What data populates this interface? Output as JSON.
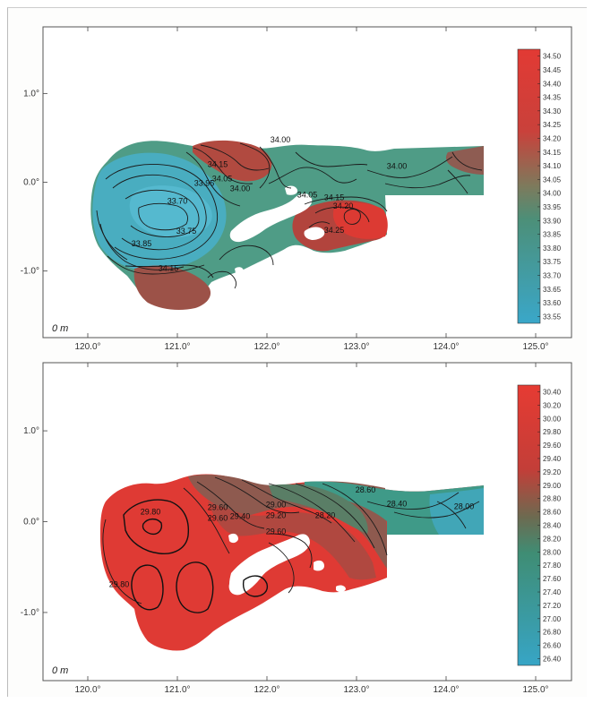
{
  "chart_data": [
    {
      "type": "heatmap",
      "panel": "top",
      "depth_label": "0 m",
      "x_ticks": [
        "120.0°",
        "121.0°",
        "122.0°",
        "123.0°",
        "124.0°",
        "125.0°"
      ],
      "y_ticks": [
        "1.0°",
        "0.0°",
        "-1.0°"
      ],
      "xlim": [
        119.5,
        125.4
      ],
      "ylim": [
        -1.75,
        1.75
      ],
      "colorbar": {
        "position": "right",
        "low_color": "#3fa9c6",
        "high_color": "#dd3b33",
        "labels": [
          "34.50",
          "34.45",
          "34.40",
          "34.35",
          "34.30",
          "34.25",
          "34.20",
          "34.15",
          "34.10",
          "34.05",
          "34.00",
          "33.95",
          "33.90",
          "33.85",
          "33.80",
          "33.75",
          "33.70",
          "33.65",
          "33.60",
          "33.55"
        ]
      },
      "contour_labels": [
        {
          "text": "34.15",
          "x": 120.9,
          "y": -1.0
        },
        {
          "text": "33.85",
          "x": 120.6,
          "y": -0.72
        },
        {
          "text": "33.75",
          "x": 121.1,
          "y": -0.58
        },
        {
          "text": "33.70",
          "x": 121.0,
          "y": -0.24
        },
        {
          "text": "33.95",
          "x": 121.3,
          "y": -0.04
        },
        {
          "text": "34.05",
          "x": 121.5,
          "y": 0.01
        },
        {
          "text": "34.00",
          "x": 121.7,
          "y": -0.1
        },
        {
          "text": "34.15",
          "x": 121.45,
          "y": 0.17
        },
        {
          "text": "34.00",
          "x": 122.15,
          "y": 0.45
        },
        {
          "text": "34.05",
          "x": 122.45,
          "y": -0.17
        },
        {
          "text": "34.15",
          "x": 122.75,
          "y": -0.2
        },
        {
          "text": "34.20",
          "x": 122.85,
          "y": -0.3
        },
        {
          "text": "34.25",
          "x": 122.75,
          "y": -0.57
        },
        {
          "text": "34.00",
          "x": 123.45,
          "y": 0.15
        }
      ]
    },
    {
      "type": "heatmap",
      "panel": "bottom",
      "depth_label": "0 m",
      "x_ticks": [
        "120.0°",
        "121.0°",
        "122.0°",
        "123.0°",
        "124.0°",
        "125.0°"
      ],
      "y_ticks": [
        "1.0°",
        "0.0°",
        "-1.0°"
      ],
      "xlim": [
        119.5,
        125.4
      ],
      "ylim": [
        -1.75,
        1.75
      ],
      "colorbar": {
        "position": "right",
        "low_color": "#3fa9c6",
        "high_color": "#dd3b33",
        "labels": [
          "30.40",
          "30.20",
          "30.00",
          "29.80",
          "29.60",
          "29.40",
          "29.20",
          "29.00",
          "28.80",
          "28.60",
          "28.40",
          "28.20",
          "28.00",
          "27.80",
          "27.60",
          "27.40",
          "27.20",
          "27.00",
          "26.80",
          "26.60",
          "26.40"
        ]
      },
      "contour_labels": [
        {
          "text": "29.80",
          "x": 120.7,
          "y": 0.08
        },
        {
          "text": "29.80",
          "x": 120.35,
          "y": -0.72
        },
        {
          "text": "29.60",
          "x": 121.45,
          "y": 0.13
        },
        {
          "text": "29.60",
          "x": 121.45,
          "y": 0.01
        },
        {
          "text": "29.40",
          "x": 121.7,
          "y": 0.03
        },
        {
          "text": "29.00",
          "x": 122.1,
          "y": 0.16
        },
        {
          "text": "29.20",
          "x": 122.1,
          "y": 0.04
        },
        {
          "text": "29.60",
          "x": 122.1,
          "y": -0.14
        },
        {
          "text": "28.20",
          "x": 122.65,
          "y": 0.04
        },
        {
          "text": "28.60",
          "x": 123.1,
          "y": 0.32
        },
        {
          "text": "28.40",
          "x": 123.45,
          "y": 0.17
        },
        {
          "text": "28.00",
          "x": 124.2,
          "y": 0.14
        }
      ]
    }
  ]
}
